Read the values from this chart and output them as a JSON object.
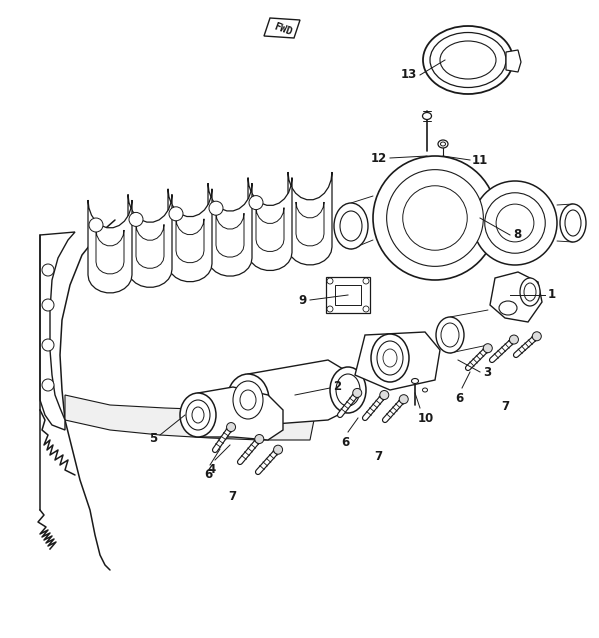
{
  "bg_color": "#ffffff",
  "line_color": "#1a1a1a",
  "fig_width": 5.99,
  "fig_height": 6.38,
  "dpi": 100,
  "font_size": 8.5,
  "lw_main": 1.1,
  "lw_thin": 0.65
}
